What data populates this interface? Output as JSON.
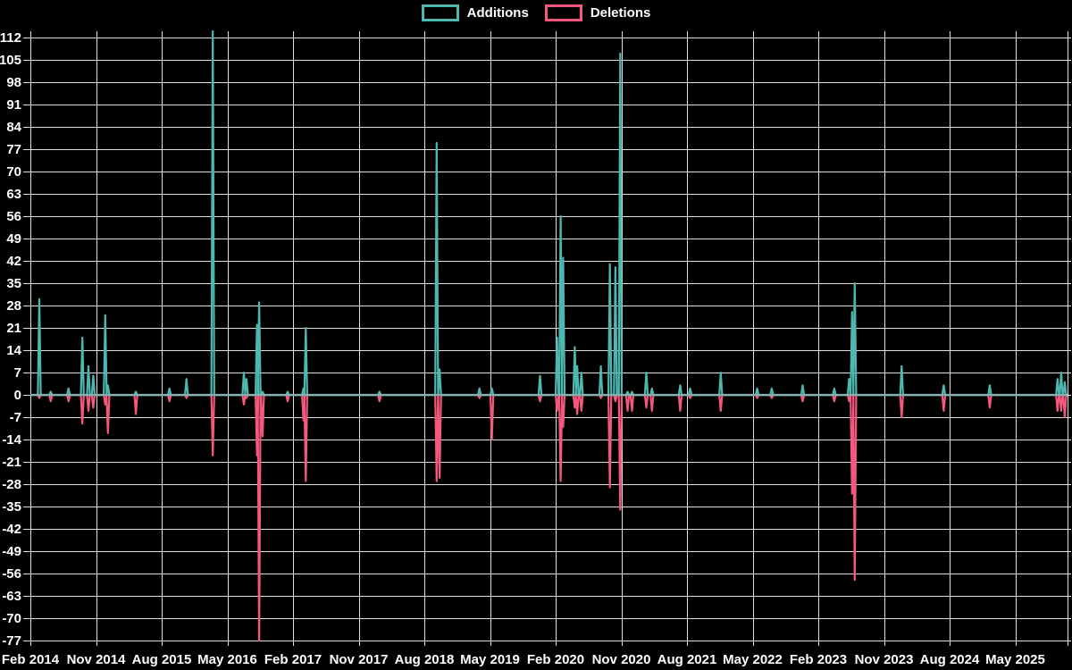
{
  "chart_data": {
    "type": "line",
    "title": "",
    "legend_position": "top",
    "grid": true,
    "baseline": 0,
    "legend": [
      {
        "label": "Additions",
        "color": "#4db8b0"
      },
      {
        "label": "Deletions",
        "color": "#f4587c"
      }
    ],
    "colors": {
      "additions": "#4db8b0",
      "deletions": "#f4587c",
      "zero_line": "#8fafb2",
      "gridline": "#ffffff",
      "text": "#ffffff",
      "background": "#000000"
    },
    "y_axis": {
      "min": -77,
      "max": 114,
      "tick_step": 7,
      "tick_labels": [
        112,
        105,
        98,
        91,
        84,
        77,
        70,
        63,
        56,
        49,
        42,
        35,
        28,
        21,
        14,
        7,
        0,
        -7,
        -14,
        -21,
        -28,
        -35,
        -42,
        -49,
        -56,
        -63,
        -70,
        -77
      ]
    },
    "x_axis": {
      "start": "2014-02",
      "end": "2025-12",
      "tick_interval_months": 9,
      "tick_labels": [
        "Feb 2014",
        "Nov 2014",
        "Aug 2015",
        "May 2016",
        "Feb 2017",
        "Nov 2017",
        "Aug 2018",
        "May 2019",
        "Feb 2020",
        "Nov 2020",
        "Aug 2021",
        "May 2022",
        "Feb 2023",
        "Nov 2023",
        "Aug 2024",
        "May 2025"
      ]
    },
    "events": [
      {
        "date": "2014-03-08",
        "additions": 30,
        "deletions": 1
      },
      {
        "date": "2014-04-25",
        "additions": 1,
        "deletions": 2
      },
      {
        "date": "2014-07-08",
        "additions": 2,
        "deletions": 2
      },
      {
        "date": "2014-09-05",
        "additions": 18,
        "deletions": 9
      },
      {
        "date": "2014-09-30",
        "additions": 9,
        "deletions": 5
      },
      {
        "date": "2014-10-20",
        "additions": 6,
        "deletions": 4
      },
      {
        "date": "2014-12-09",
        "additions": 25,
        "deletions": 3
      },
      {
        "date": "2014-12-20",
        "additions": 3,
        "deletions": 12
      },
      {
        "date": "2015-04-15",
        "additions": 1,
        "deletions": 6
      },
      {
        "date": "2015-09-03",
        "additions": 2,
        "deletions": 2
      },
      {
        "date": "2015-11-13",
        "additions": 5,
        "deletions": 1
      },
      {
        "date": "2016-03-01",
        "additions": 114,
        "deletions": 19
      },
      {
        "date": "2016-07-09",
        "additions": 7,
        "deletions": 3
      },
      {
        "date": "2016-07-20",
        "additions": 5,
        "deletions": 1
      },
      {
        "date": "2016-09-03",
        "additions": 22,
        "deletions": 19
      },
      {
        "date": "2016-09-12",
        "additions": 29,
        "deletions": 77
      },
      {
        "date": "2016-09-26",
        "additions": 1,
        "deletions": 13
      },
      {
        "date": "2017-01-09",
        "additions": 1,
        "deletions": 2
      },
      {
        "date": "2017-03-14",
        "additions": 2,
        "deletions": 8
      },
      {
        "date": "2017-03-24",
        "additions": 21,
        "deletions": 27
      },
      {
        "date": "2018-01-27",
        "additions": 1,
        "deletions": 2
      },
      {
        "date": "2018-09-22",
        "additions": 79,
        "deletions": 27
      },
      {
        "date": "2018-10-04",
        "additions": 8,
        "deletions": 26
      },
      {
        "date": "2019-03-18",
        "additions": 2,
        "deletions": 1
      },
      {
        "date": "2019-05-09",
        "additions": 2,
        "deletions": 14
      },
      {
        "date": "2019-11-27",
        "additions": 6,
        "deletions": 2
      },
      {
        "date": "2020-02-07",
        "additions": 18,
        "deletions": 5
      },
      {
        "date": "2020-02-22",
        "additions": 56,
        "deletions": 27
      },
      {
        "date": "2020-03-02",
        "additions": 43,
        "deletions": 10
      },
      {
        "date": "2020-04-20",
        "additions": 15,
        "deletions": 4
      },
      {
        "date": "2020-04-30",
        "additions": 9,
        "deletions": 6
      },
      {
        "date": "2020-05-17",
        "additions": 7,
        "deletions": 5
      },
      {
        "date": "2020-08-07",
        "additions": 9,
        "deletions": 1
      },
      {
        "date": "2020-09-14",
        "additions": 41,
        "deletions": 29
      },
      {
        "date": "2020-10-07",
        "additions": 40,
        "deletions": 2
      },
      {
        "date": "2020-10-27",
        "additions": 107,
        "deletions": 36
      },
      {
        "date": "2020-11-27",
        "additions": 1,
        "deletions": 5
      },
      {
        "date": "2020-12-15",
        "additions": 1,
        "deletions": 5
      },
      {
        "date": "2021-02-14",
        "additions": 7,
        "deletions": 4
      },
      {
        "date": "2021-03-07",
        "additions": 2,
        "deletions": 5
      },
      {
        "date": "2021-07-03",
        "additions": 3,
        "deletions": 5
      },
      {
        "date": "2021-08-14",
        "additions": 2,
        "deletions": 1
      },
      {
        "date": "2021-12-20",
        "additions": 7,
        "deletions": 5
      },
      {
        "date": "2022-05-20",
        "additions": 2,
        "deletions": 1
      },
      {
        "date": "2022-07-20",
        "additions": 2,
        "deletions": 1
      },
      {
        "date": "2022-11-27",
        "additions": 3,
        "deletions": 2
      },
      {
        "date": "2023-04-07",
        "additions": 2,
        "deletions": 2
      },
      {
        "date": "2023-06-08",
        "additions": 5,
        "deletions": 2
      },
      {
        "date": "2023-06-20",
        "additions": 26,
        "deletions": 31
      },
      {
        "date": "2023-07-01",
        "additions": 35,
        "deletions": 58
      },
      {
        "date": "2024-01-14",
        "additions": 9,
        "deletions": 7
      },
      {
        "date": "2024-07-07",
        "additions": 3,
        "deletions": 5
      },
      {
        "date": "2025-01-16",
        "additions": 3,
        "deletions": 4
      },
      {
        "date": "2025-10-25",
        "additions": 5,
        "deletions": 5
      },
      {
        "date": "2025-11-10",
        "additions": 7,
        "deletions": 5
      },
      {
        "date": "2025-11-25",
        "additions": 4,
        "deletions": 7
      }
    ]
  }
}
